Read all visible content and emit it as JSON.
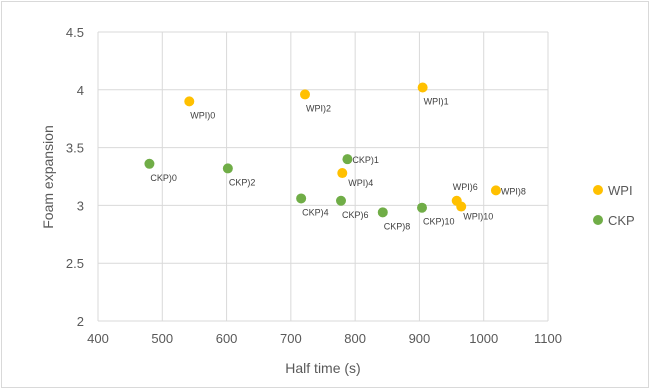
{
  "chart_data": {
    "type": "scatter",
    "title": "",
    "xlabel": "Half time (s)",
    "ylabel": "Foam expansion",
    "xlim": [
      400,
      1100
    ],
    "ylim": [
      2,
      4.5
    ],
    "x_ticks": [
      "400",
      "500",
      "600",
      "700",
      "800",
      "900",
      "1000",
      "1100"
    ],
    "y_ticks": [
      "2",
      "2.5",
      "3",
      "3.5",
      "4",
      "4.5"
    ],
    "grid": true,
    "legend_position": "right",
    "series": [
      {
        "name": "WPI",
        "color": "#ffc000",
        "points": [
          {
            "x": 542,
            "y": 3.9,
            "label": "WPI)0"
          },
          {
            "x": 905,
            "y": 4.02,
            "label": "WPI)1"
          },
          {
            "x": 722,
            "y": 3.96,
            "label": "WPI)2"
          },
          {
            "x": 780,
            "y": 3.28,
            "label": "WPI)4"
          },
          {
            "x": 958,
            "y": 3.04,
            "label": "WPI)6"
          },
          {
            "x": 1019,
            "y": 3.13,
            "label": "WPI)8"
          },
          {
            "x": 965,
            "y": 2.99,
            "label": "WPI)10"
          }
        ]
      },
      {
        "name": "CKP",
        "color": "#70ad47",
        "points": [
          {
            "x": 480,
            "y": 3.36,
            "label": "CKP)0"
          },
          {
            "x": 788,
            "y": 3.4,
            "label": "CKP)1"
          },
          {
            "x": 602,
            "y": 3.32,
            "label": "CKP)2"
          },
          {
            "x": 716,
            "y": 3.06,
            "label": "CKP)4"
          },
          {
            "x": 778,
            "y": 3.04,
            "label": "CKP)6"
          },
          {
            "x": 843,
            "y": 2.94,
            "label": "CKP)8"
          },
          {
            "x": 904,
            "y": 2.98,
            "label": "CKP)10"
          }
        ]
      }
    ]
  }
}
